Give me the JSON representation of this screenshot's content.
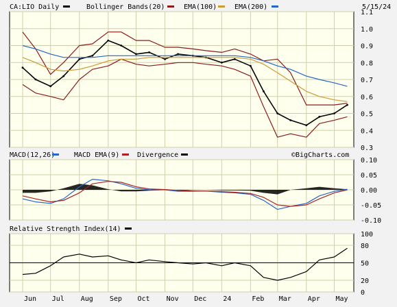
{
  "header": {
    "symbol": "CA:LIO Daily",
    "bb": "Bollinger Bands(20)",
    "ema100": "EMA(100)",
    "ema200": "EMA(200)",
    "date": "5/15/24"
  },
  "macd_panel": {
    "title": "MACD(12,26)",
    "ema": "MACD EMA(9)",
    "div": "Divergence",
    "watermark": "©BigCharts.com"
  },
  "rsi_panel": {
    "title": "Relative Strength Index(14)"
  },
  "colors": {
    "bg": "#ffffee",
    "frame": "#f2f2f2",
    "grid": "#cfcfa9",
    "price": "#000000",
    "bb": "#8b1a1a",
    "ema100": "#cc9933",
    "ema200": "#2266cc",
    "macd": "#2266cc",
    "signal": "#aa2222",
    "div": "#000000",
    "rsi": "#000000"
  },
  "chart_data": [
    {
      "type": "line",
      "title": "CA:LIO Daily",
      "x": [
        "2023-06-01",
        "2023-06-15",
        "2023-07-01",
        "2023-07-15",
        "2023-08-01",
        "2023-08-15",
        "2023-09-01",
        "2023-09-15",
        "2023-10-01",
        "2023-10-15",
        "2023-11-01",
        "2023-11-15",
        "2023-12-01",
        "2023-12-15",
        "2024-01-01",
        "2024-01-15",
        "2024-02-01",
        "2024-02-15",
        "2024-03-01",
        "2024-03-15",
        "2024-04-01",
        "2024-04-15",
        "2024-05-01",
        "2024-05-15"
      ],
      "ylim": [
        0.3,
        1.1
      ],
      "yticks": [
        0.3,
        0.4,
        0.5,
        0.6,
        0.7,
        0.8,
        0.9,
        1.0,
        1.1
      ],
      "xticks": [
        "Jun",
        "Jul",
        "Aug",
        "Sep",
        "Oct",
        "Nov",
        "Dec",
        "24",
        "Feb",
        "Mar",
        "Apr",
        "May"
      ],
      "series": [
        {
          "name": "CA:LIO",
          "values": [
            0.77,
            0.7,
            0.66,
            0.72,
            0.82,
            0.84,
            0.93,
            0.9,
            0.85,
            0.86,
            0.82,
            0.85,
            0.84,
            0.83,
            0.8,
            0.82,
            0.78,
            0.63,
            0.5,
            0.46,
            0.43,
            0.48,
            0.5,
            0.55
          ]
        },
        {
          "name": "Bollinger Upper",
          "values": [
            0.98,
            0.88,
            0.73,
            0.8,
            0.9,
            0.91,
            0.98,
            0.98,
            0.93,
            0.93,
            0.89,
            0.89,
            0.88,
            0.87,
            0.86,
            0.88,
            0.85,
            0.81,
            0.82,
            0.74,
            0.55,
            0.55,
            0.55,
            0.56
          ]
        },
        {
          "name": "Bollinger Lower",
          "values": [
            0.67,
            0.62,
            0.6,
            0.58,
            0.7,
            0.76,
            0.78,
            0.82,
            0.79,
            0.78,
            0.79,
            0.8,
            0.8,
            0.79,
            0.78,
            0.76,
            0.72,
            0.54,
            0.36,
            0.38,
            0.36,
            0.44,
            0.46,
            0.48
          ]
        },
        {
          "name": "EMA(100)",
          "values": [
            0.83,
            0.8,
            0.76,
            0.75,
            0.76,
            0.78,
            0.81,
            0.82,
            0.82,
            0.83,
            0.83,
            0.83,
            0.83,
            0.83,
            0.83,
            0.83,
            0.82,
            0.79,
            0.74,
            0.69,
            0.63,
            0.6,
            0.58,
            0.57
          ]
        },
        {
          "name": "EMA(200)",
          "values": [
            0.9,
            0.88,
            0.85,
            0.83,
            0.83,
            0.83,
            0.84,
            0.84,
            0.84,
            0.84,
            0.84,
            0.84,
            0.84,
            0.84,
            0.84,
            0.84,
            0.83,
            0.81,
            0.78,
            0.76,
            0.72,
            0.7,
            0.68,
            0.66
          ]
        }
      ]
    },
    {
      "type": "line",
      "title": "MACD(12,26)",
      "x": [
        "2023-06-01",
        "2023-06-15",
        "2023-07-01",
        "2023-07-15",
        "2023-08-01",
        "2023-08-15",
        "2023-09-01",
        "2023-09-15",
        "2023-10-01",
        "2023-10-15",
        "2023-11-01",
        "2023-11-15",
        "2023-12-01",
        "2023-12-15",
        "2024-01-01",
        "2024-01-15",
        "2024-02-01",
        "2024-02-15",
        "2024-03-01",
        "2024-03-15",
        "2024-04-01",
        "2024-04-15",
        "2024-05-01",
        "2024-05-15"
      ],
      "ylim": [
        -0.1,
        0.1
      ],
      "yticks": [
        0.1,
        0.05,
        0.0,
        -0.05,
        -0.1
      ],
      "series": [
        {
          "name": "MACD",
          "values": [
            -0.03,
            -0.04,
            -0.045,
            -0.03,
            0.01,
            0.035,
            0.03,
            0.02,
            0.005,
            0.0,
            0.0,
            -0.005,
            -0.005,
            -0.004,
            -0.008,
            -0.01,
            -0.015,
            -0.035,
            -0.065,
            -0.055,
            -0.045,
            -0.02,
            -0.005,
            0.002
          ]
        },
        {
          "name": "MACD EMA(9)",
          "values": [
            -0.02,
            -0.03,
            -0.04,
            -0.035,
            -0.01,
            0.02,
            0.028,
            0.025,
            0.01,
            0.003,
            0.001,
            -0.002,
            -0.004,
            -0.004,
            -0.006,
            -0.008,
            -0.012,
            -0.025,
            -0.05,
            -0.055,
            -0.05,
            -0.03,
            -0.01,
            0.0
          ]
        },
        {
          "name": "Divergence",
          "values": [
            -0.01,
            -0.01,
            -0.005,
            0.005,
            0.02,
            0.015,
            0.002,
            -0.005,
            -0.005,
            -0.003,
            -0.001,
            -0.003,
            -0.001,
            0.0,
            -0.002,
            -0.002,
            -0.003,
            -0.01,
            -0.015,
            0.0,
            0.005,
            0.01,
            0.005,
            0.002
          ]
        }
      ]
    },
    {
      "type": "line",
      "title": "Relative Strength Index(14)",
      "x": [
        "2023-06-01",
        "2023-06-15",
        "2023-07-01",
        "2023-07-15",
        "2023-08-01",
        "2023-08-15",
        "2023-09-01",
        "2023-09-15",
        "2023-10-01",
        "2023-10-15",
        "2023-11-01",
        "2023-11-15",
        "2023-12-01",
        "2023-12-15",
        "2024-01-01",
        "2024-01-15",
        "2024-02-01",
        "2024-02-15",
        "2024-03-01",
        "2024-03-15",
        "2024-04-01",
        "2024-04-15",
        "2024-05-01",
        "2024-05-15"
      ],
      "ylim": [
        0,
        100
      ],
      "yticks": [
        100,
        80,
        50,
        20,
        0
      ],
      "reference_line": 50,
      "series": [
        {
          "name": "RSI(14)",
          "values": [
            30,
            32,
            45,
            60,
            65,
            60,
            62,
            55,
            50,
            55,
            52,
            50,
            48,
            50,
            45,
            50,
            45,
            25,
            20,
            25,
            35,
            55,
            60,
            75
          ]
        }
      ]
    }
  ]
}
